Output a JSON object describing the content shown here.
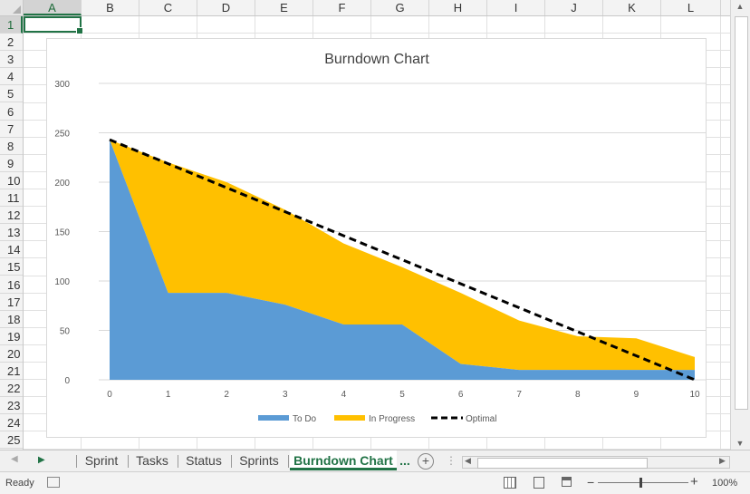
{
  "columns": [
    "A",
    "B",
    "C",
    "D",
    "E",
    "F",
    "G",
    "H",
    "I",
    "J",
    "K",
    "L"
  ],
  "rows": [
    "1",
    "2",
    "3",
    "4",
    "5",
    "6",
    "7",
    "8",
    "9",
    "10",
    "11",
    "12",
    "13",
    "14",
    "15",
    "16",
    "17",
    "18",
    "19",
    "20",
    "21",
    "22",
    "23",
    "24",
    "25"
  ],
  "selected_cell": "A1",
  "chart_data": {
    "type": "area",
    "title": "Burndown Chart",
    "x": [
      0,
      1,
      2,
      3,
      4,
      5,
      6,
      7,
      8,
      9,
      10
    ],
    "series": [
      {
        "name": "To Do",
        "kind": "stacked-area",
        "color": "#5b9bd5",
        "values": [
          243,
          88,
          88,
          76,
          56,
          56,
          16,
          10,
          10,
          10,
          10
        ]
      },
      {
        "name": "In Progress",
        "kind": "stacked-area",
        "color": "#ffc000",
        "values": [
          0,
          132,
          112,
          96,
          82,
          58,
          72,
          50,
          34,
          32,
          13
        ]
      },
      {
        "name": "Optimal",
        "kind": "dashed-line",
        "color": "#000000",
        "values": [
          243,
          218.7,
          194.4,
          170.1,
          145.8,
          121.5,
          97.2,
          72.9,
          48.6,
          24.3,
          0
        ]
      }
    ],
    "xlabel": "",
    "ylabel": "",
    "ylim": [
      0,
      300
    ],
    "yticks": [
      0,
      50,
      100,
      150,
      200,
      250,
      300
    ],
    "grid": true,
    "legend_position": "bottom"
  },
  "tabs": {
    "items": [
      "Sprint",
      "Tasks",
      "Status",
      "Sprints",
      "Burndown Chart"
    ],
    "active": "Burndown Chart",
    "more": "..."
  },
  "status": {
    "ready": "Ready",
    "zoom": "100%"
  }
}
